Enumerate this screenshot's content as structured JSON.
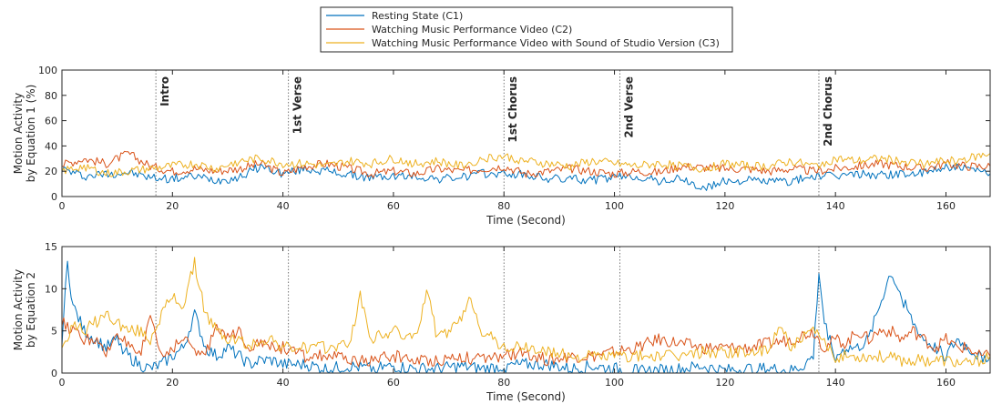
{
  "legend": {
    "placement": "top-center",
    "entries": [
      {
        "label": "Resting State (C1)",
        "color": "#0072BD"
      },
      {
        "label": "Watching Music Performance Video (C2)",
        "color": "#D95319"
      },
      {
        "label": "Watching Music Performance Video with Sound of Studio Version (C3)",
        "color": "#EDB120"
      }
    ]
  },
  "segments": {
    "lines": [
      17,
      41,
      80,
      101,
      137
    ],
    "labels": [
      "Intro",
      "1st Verse",
      "1st Chorus",
      "2nd Verse",
      "2nd Chorus"
    ]
  },
  "chart_data": [
    {
      "type": "line",
      "xlabel": "Time (Second)",
      "ylabel": [
        "Motion Activity",
        "by Equation 1 (%)"
      ],
      "xlim": [
        0,
        168
      ],
      "ylim": [
        0,
        100
      ],
      "xticks": [
        0,
        20,
        40,
        60,
        80,
        100,
        120,
        140,
        160
      ],
      "yticks": [
        0,
        20,
        40,
        60,
        80,
        100
      ],
      "grid": false,
      "series": [
        {
          "name": "Resting State (C1)",
          "color": "#0072BD",
          "x": [
            0,
            4,
            8,
            12,
            16,
            20,
            24,
            28,
            32,
            36,
            40,
            44,
            48,
            52,
            56,
            60,
            64,
            68,
            72,
            76,
            80,
            84,
            88,
            92,
            96,
            100,
            104,
            108,
            112,
            116,
            120,
            124,
            128,
            132,
            136,
            140,
            144,
            148,
            152,
            156,
            160,
            164,
            168
          ],
          "values": [
            22,
            16,
            18,
            19,
            15,
            14,
            16,
            13,
            15,
            24,
            18,
            22,
            20,
            17,
            15,
            16,
            16,
            14,
            15,
            18,
            18,
            17,
            14,
            14,
            13,
            15,
            16,
            12,
            14,
            6,
            12,
            13,
            12,
            12,
            16,
            16,
            18,
            17,
            18,
            18,
            24,
            21,
            18
          ]
        },
        {
          "name": "Watching Music Performance Video (C2)",
          "color": "#D95319",
          "x": [
            0,
            4,
            8,
            12,
            16,
            20,
            24,
            28,
            32,
            36,
            40,
            44,
            48,
            52,
            56,
            60,
            64,
            68,
            72,
            76,
            80,
            84,
            88,
            92,
            96,
            100,
            104,
            108,
            112,
            116,
            120,
            124,
            128,
            132,
            136,
            140,
            144,
            148,
            152,
            156,
            160,
            164,
            168
          ],
          "values": [
            25,
            30,
            26,
            34,
            24,
            20,
            22,
            20,
            22,
            26,
            18,
            24,
            26,
            22,
            18,
            20,
            18,
            22,
            20,
            22,
            24,
            18,
            20,
            22,
            20,
            18,
            20,
            19,
            24,
            23,
            22,
            22,
            20,
            22,
            20,
            22,
            24,
            26,
            24,
            22,
            26,
            24,
            24
          ]
        },
        {
          "name": "Watching Music Performance Video with Sound of Studio Version (C3)",
          "color": "#EDB120",
          "x": [
            0,
            4,
            8,
            12,
            16,
            20,
            24,
            28,
            32,
            36,
            40,
            44,
            48,
            52,
            56,
            60,
            64,
            68,
            72,
            76,
            80,
            84,
            88,
            92,
            96,
            100,
            104,
            108,
            112,
            116,
            120,
            124,
            128,
            132,
            136,
            140,
            144,
            148,
            152,
            156,
            160,
            164,
            168
          ],
          "values": [
            20,
            24,
            18,
            20,
            22,
            24,
            26,
            22,
            28,
            30,
            26,
            26,
            24,
            28,
            26,
            30,
            26,
            28,
            24,
            30,
            32,
            28,
            26,
            24,
            28,
            26,
            24,
            26,
            24,
            22,
            26,
            24,
            24,
            28,
            24,
            30,
            28,
            30,
            28,
            26,
            28,
            30,
            34
          ]
        }
      ]
    },
    {
      "type": "line",
      "xlabel": "Time (Second)",
      "ylabel": [
        "Motion Activity",
        "by Equation 2"
      ],
      "xlim": [
        0,
        168
      ],
      "ylim": [
        0,
        15
      ],
      "xticks": [
        0,
        20,
        40,
        60,
        80,
        100,
        120,
        140,
        160
      ],
      "yticks": [
        0,
        5,
        10,
        15
      ],
      "grid": false,
      "series": [
        {
          "name": "Resting State (C1)",
          "color": "#0072BD",
          "x": [
            0,
            1,
            2,
            4,
            6,
            8,
            10,
            12,
            14,
            16,
            18,
            20,
            22,
            24,
            26,
            28,
            30,
            32,
            34,
            36,
            38,
            40,
            44,
            48,
            52,
            56,
            60,
            64,
            68,
            72,
            76,
            80,
            84,
            88,
            92,
            96,
            100,
            104,
            108,
            112,
            116,
            120,
            124,
            128,
            132,
            134,
            136,
            137,
            138,
            140,
            142,
            144,
            146,
            148,
            150,
            152,
            154,
            156,
            158,
            160,
            162,
            164,
            166,
            168
          ],
          "values": [
            4,
            13,
            8,
            5,
            4,
            3,
            4,
            2,
            1,
            0.5,
            1,
            2,
            3,
            7,
            3,
            2,
            3,
            2,
            1,
            1.5,
            1.5,
            1,
            1,
            0.5,
            0.8,
            0.5,
            0.8,
            0.5,
            0.5,
            0.8,
            0.5,
            0.8,
            1,
            1,
            0.5,
            0.8,
            0.5,
            0.3,
            0.3,
            0.5,
            0.8,
            0.3,
            0.5,
            0.5,
            0.3,
            0.8,
            2,
            12,
            6,
            2,
            3,
            3,
            4,
            8,
            12,
            9,
            6,
            4,
            3,
            2,
            4,
            3,
            2,
            2
          ]
        },
        {
          "name": "Watching Music Performance Video (C2)",
          "color": "#D95319",
          "x": [
            0,
            2,
            4,
            6,
            8,
            10,
            12,
            14,
            16,
            18,
            20,
            22,
            24,
            26,
            28,
            30,
            32,
            34,
            36,
            38,
            40,
            44,
            48,
            52,
            56,
            60,
            64,
            68,
            72,
            76,
            80,
            84,
            88,
            92,
            96,
            100,
            104,
            108,
            112,
            116,
            120,
            124,
            128,
            132,
            136,
            138,
            140,
            142,
            144,
            146,
            148,
            150,
            152,
            154,
            156,
            158,
            160,
            162,
            164,
            166,
            168
          ],
          "values": [
            6,
            5,
            4,
            4,
            2,
            5,
            3,
            2,
            7,
            2,
            3,
            4,
            3,
            2,
            6,
            4,
            5,
            3,
            4,
            3,
            3,
            2,
            2,
            1.5,
            1.5,
            2,
            1.5,
            1.5,
            2,
            1.5,
            2,
            2.5,
            1.5,
            2,
            2,
            2.5,
            3,
            4,
            3.5,
            3,
            3,
            3,
            3.5,
            4,
            5,
            3,
            4,
            3.5,
            5,
            4,
            5,
            5,
            4,
            5,
            4,
            3,
            4,
            3,
            3,
            2,
            2
          ]
        },
        {
          "name": "Watching Music Performance Video with Sound of Studio Version (C3)",
          "color": "#EDB120",
          "x": [
            0,
            2,
            4,
            6,
            8,
            10,
            12,
            14,
            16,
            18,
            20,
            22,
            24,
            26,
            28,
            30,
            32,
            34,
            36,
            38,
            40,
            44,
            48,
            52,
            54,
            56,
            60,
            64,
            66,
            68,
            72,
            74,
            76,
            80,
            84,
            88,
            92,
            96,
            100,
            104,
            108,
            112,
            116,
            120,
            124,
            128,
            130,
            132,
            136,
            140,
            144,
            148,
            152,
            156,
            160,
            164,
            168
          ],
          "values": [
            3,
            6,
            5,
            6,
            7,
            6,
            5,
            5,
            4,
            7,
            9,
            8,
            13,
            7,
            5,
            4,
            4,
            3,
            4,
            4,
            3,
            3,
            3,
            3.5,
            9,
            4,
            5,
            4,
            10,
            4,
            6,
            9,
            5,
            3,
            3,
            2.5,
            2,
            2,
            2,
            2,
            2,
            2,
            2.5,
            2.5,
            2.5,
            2.5,
            6,
            3,
            5,
            2,
            2,
            2,
            1.5,
            1.5,
            1.5,
            1,
            2
          ]
        }
      ]
    }
  ]
}
